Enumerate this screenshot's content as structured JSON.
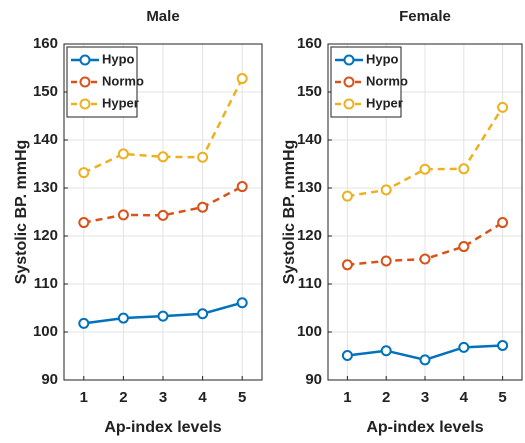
{
  "chart_data": [
    {
      "type": "line",
      "title": "Male",
      "xlabel": "Ap-index levels",
      "ylabel": "Systolic BP. mmHg",
      "x": [
        1,
        2,
        3,
        4,
        5
      ],
      "xlim": [
        0.5,
        5.5
      ],
      "xticks": [
        1,
        2,
        3,
        4,
        5
      ],
      "ylim": [
        90,
        160
      ],
      "yticks": [
        90,
        100,
        110,
        120,
        130,
        140,
        150,
        160
      ],
      "grid": true,
      "legend": "upper left",
      "series": [
        {
          "name": "Hypo",
          "color": "#0072bd",
          "style": "solid",
          "values": [
            101.8,
            102.9,
            103.3,
            103.8,
            106.1
          ]
        },
        {
          "name": "Normo",
          "color": "#d95319",
          "style": "dashed",
          "values": [
            122.8,
            124.4,
            124.3,
            126.0,
            130.3
          ]
        },
        {
          "name": "Hyper",
          "color": "#edb120",
          "style": "dashed",
          "values": [
            133.2,
            137.1,
            136.5,
            136.4,
            152.8
          ]
        }
      ]
    },
    {
      "type": "line",
      "title": "Female",
      "xlabel": "Ap-index levels",
      "ylabel": "Systolic BP. mmHg",
      "x": [
        1,
        2,
        3,
        4,
        5
      ],
      "xlim": [
        0.5,
        5.5
      ],
      "xticks": [
        1,
        2,
        3,
        4,
        5
      ],
      "ylim": [
        90,
        160
      ],
      "yticks": [
        90,
        100,
        110,
        120,
        130,
        140,
        150,
        160
      ],
      "grid": true,
      "legend": "upper left",
      "series": [
        {
          "name": "Hypo",
          "color": "#0072bd",
          "style": "solid",
          "values": [
            95.1,
            96.1,
            94.2,
            96.8,
            97.2
          ]
        },
        {
          "name": "Normo",
          "color": "#d95319",
          "style": "dashed",
          "values": [
            114.0,
            114.8,
            115.2,
            117.8,
            122.8
          ]
        },
        {
          "name": "Hyper",
          "color": "#edb120",
          "style": "dashed",
          "values": [
            128.3,
            129.6,
            133.9,
            134.0,
            146.8
          ]
        }
      ]
    }
  ]
}
